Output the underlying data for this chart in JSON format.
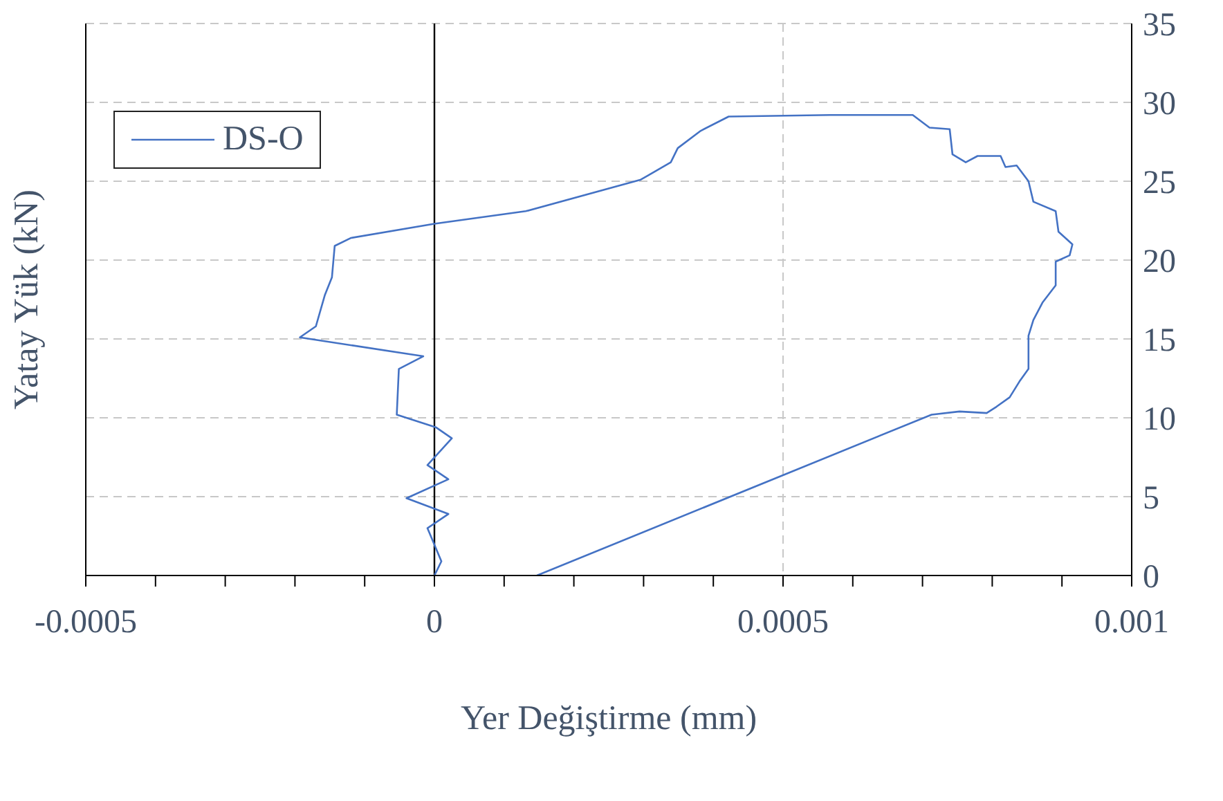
{
  "chart_data": {
    "type": "line",
    "xlabel": "Yer Değiştirme (mm)",
    "ylabel": "Yatay Yük (kN)",
    "xlim": [
      -0.0005,
      0.001
    ],
    "xticks": [
      -0.0005,
      {
        "value": -0.0004,
        "label": null
      },
      {
        "value": -0.0003,
        "label": null
      },
      {
        "value": -0.0002,
        "label": null
      },
      {
        "value": -0.0001,
        "label": null
      },
      0,
      {
        "value": 0.0001,
        "label": null
      },
      {
        "value": 0.0002,
        "label": null
      },
      {
        "value": 0.0003,
        "label": null
      },
      {
        "value": 0.0004,
        "label": null
      },
      0.0005,
      {
        "value": 0.0006,
        "label": null
      },
      {
        "value": 0.0007,
        "label": null
      },
      {
        "value": 0.0008,
        "label": null
      },
      {
        "value": 0.0009,
        "label": null
      },
      0.001
    ],
    "ylim": [
      0,
      35
    ],
    "yticks": [
      0,
      5,
      10,
      15,
      20,
      25,
      30,
      35
    ],
    "grid": true,
    "legend": "top left",
    "marker": "none",
    "line_style": "solid",
    "series": [
      {
        "name": "DS-O",
        "color": "#4472c4",
        "x": [
          0,
          1e-05,
          -1e-05,
          2e-05,
          -4e-05,
          2e-05,
          -1e-05,
          2.5e-05,
          2e-06,
          -5.4e-05,
          -5.1e-05,
          -1.6e-05,
          -0.000193,
          -0.00017,
          -0.000157,
          -0.000147,
          -0.000143,
          -0.00012,
          0,
          0.000131,
          0.000296,
          0.000339,
          0.000349,
          0.000382,
          0.000422,
          0.000567,
          0.000686,
          0.00071,
          0.000739,
          0.000743,
          0.000762,
          0.000779,
          0.000812,
          0.000819,
          0.000835,
          0.000852,
          0.000859,
          0.000891,
          0.000895,
          0.000915,
          0.000911,
          0.000891,
          0.000891,
          0.000872,
          0.000859,
          0.000852,
          0.000852,
          0.000839,
          0.000825,
          0.000806,
          0.000792,
          0.000753,
          0.000713,
          0.000147
        ],
        "values": [
          0,
          0.9,
          3.0,
          3.9,
          4.9,
          6.1,
          7.0,
          8.7,
          9.4,
          10.2,
          13.1,
          13.9,
          15.1,
          15.8,
          17.8,
          18.9,
          20.9,
          21.4,
          22.3,
          23.1,
          25.1,
          26.2,
          27.1,
          28.2,
          29.1,
          29.2,
          29.2,
          28.4,
          28.3,
          26.7,
          26.2,
          26.6,
          26.6,
          25.9,
          26.0,
          25.0,
          23.7,
          23.1,
          21.8,
          21.0,
          20.3,
          19.9,
          18.4,
          17.3,
          16.2,
          15.2,
          13.1,
          12.3,
          11.3,
          10.7,
          10.3,
          10.4,
          10.2,
          0
        ]
      }
    ]
  }
}
